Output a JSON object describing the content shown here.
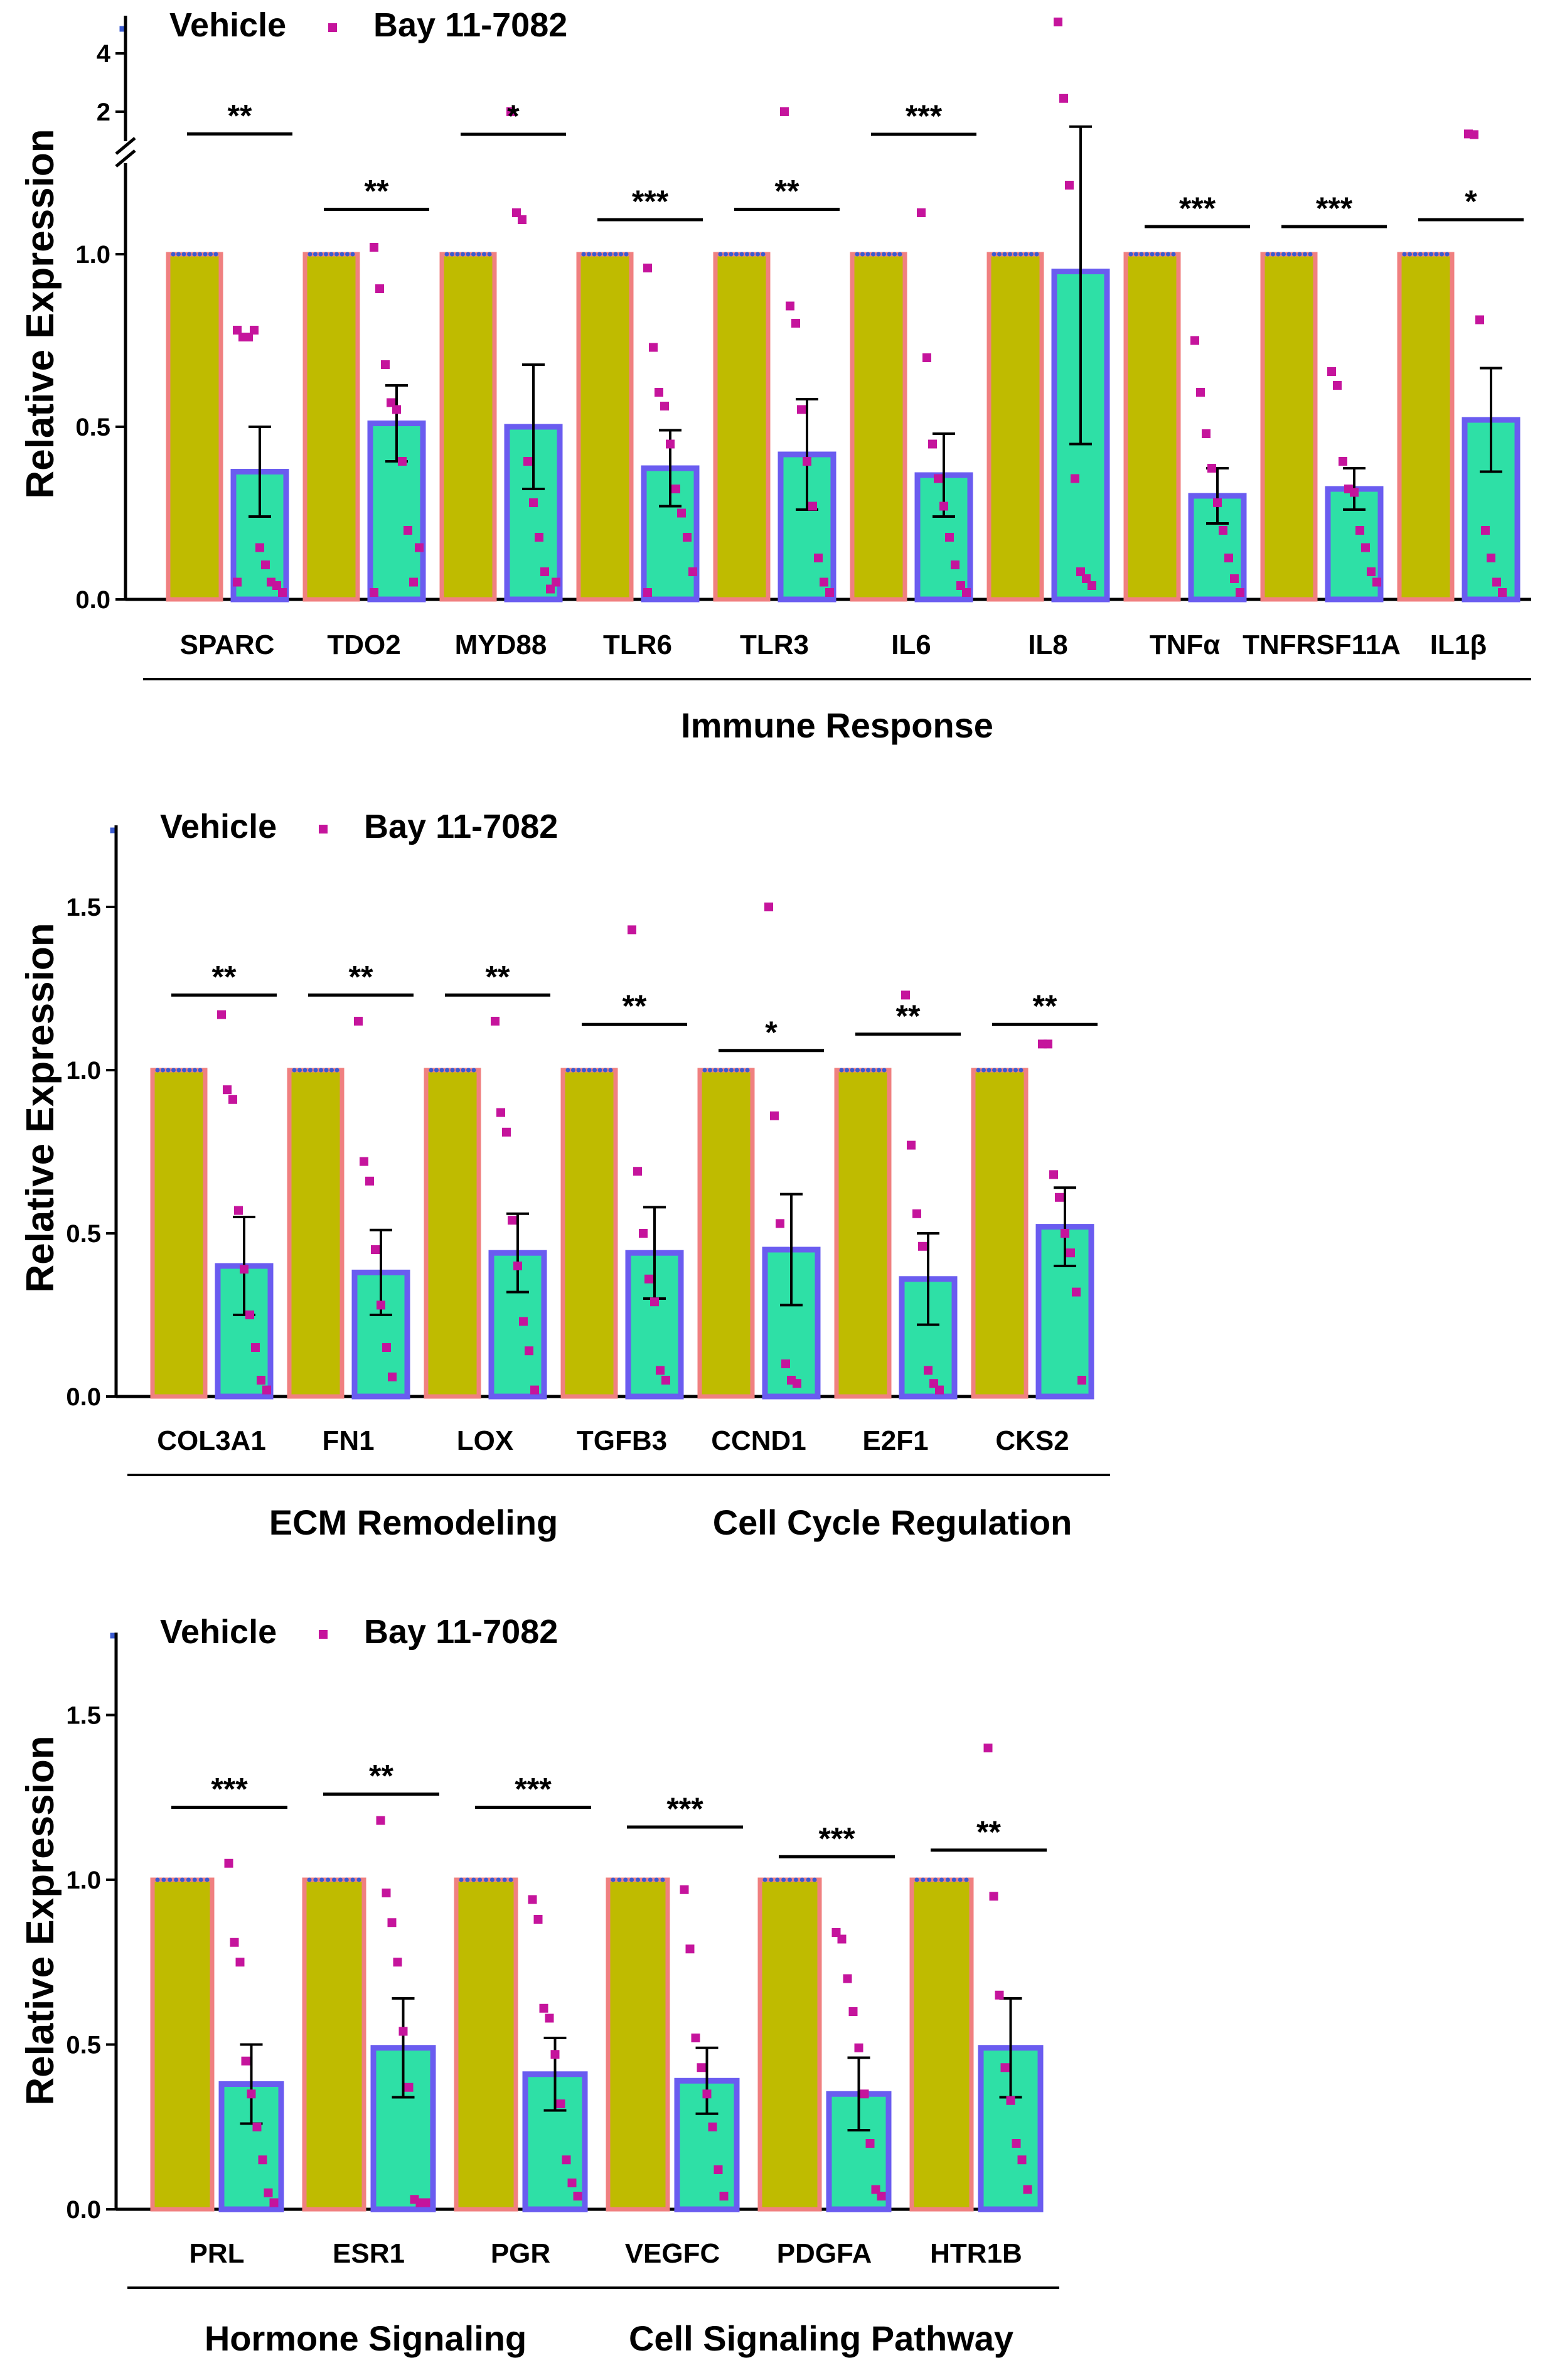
{
  "chart_data": [
    {
      "type": "bar",
      "panel": "top",
      "ylabel": "Relative Expression",
      "legend": [
        "Vehicle",
        "Bay 11-7082"
      ],
      "yticks": [
        "0.0",
        "0.5",
        "1.0"
      ],
      "yticks_broken": [
        "2",
        "4"
      ],
      "ylim": [
        0,
        1.2
      ],
      "broken_axis": [
        1.2,
        4.5
      ],
      "categories": [
        "SPARC",
        "TDO2",
        "MYD88",
        "TLR6",
        "TLR3",
        "IL6",
        "IL8",
        "TNFα",
        "TNFRSF11A",
        "IL1β"
      ],
      "series": [
        {
          "name": "Vehicle",
          "values": [
            1,
            1,
            1,
            1,
            1,
            1,
            1,
            1,
            1,
            1
          ]
        },
        {
          "name": "Bay 11-7082",
          "values": [
            0.37,
            0.51,
            0.5,
            0.38,
            0.42,
            0.36,
            0.95,
            0.3,
            0.32,
            0.52
          ],
          "sem": [
            0.13,
            0.11,
            0.18,
            0.11,
            0.16,
            0.12,
            0.5,
            0.08,
            0.06,
            0.15
          ]
        }
      ],
      "points": [
        [
          0.78,
          0.76,
          0.76,
          0.78,
          0.15,
          0.1,
          0.05,
          0.04,
          0.02,
          0.05
        ],
        [
          1.02,
          0.9,
          0.68,
          0.57,
          0.55,
          0.4,
          0.2,
          0.05,
          0.15,
          0.02
        ],
        [
          1.9,
          1.12,
          1.1,
          0.4,
          0.28,
          0.18,
          0.08,
          0.03,
          0.05
        ],
        [
          0.96,
          0.73,
          0.6,
          0.56,
          0.45,
          0.32,
          0.25,
          0.18,
          0.08,
          0.02
        ],
        [
          1.9,
          0.85,
          0.8,
          0.55,
          0.4,
          0.27,
          0.12,
          0.05,
          0.02
        ],
        [
          1.12,
          0.7,
          0.45,
          0.35,
          0.27,
          0.18,
          0.1,
          0.04,
          0.02
        ],
        [
          4.6,
          2.3,
          1.2,
          0.35,
          0.08,
          0.06,
          0.04
        ],
        [
          0.75,
          0.6,
          0.48,
          0.38,
          0.28,
          0.2,
          0.12,
          0.06,
          0.02
        ],
        [
          0.66,
          0.62,
          0.4,
          0.32,
          0.31,
          0.2,
          0.15,
          0.08,
          0.05
        ],
        [
          1.23,
          1.21,
          0.81,
          0.2,
          0.12,
          0.05,
          0.02
        ]
      ],
      "significance": [
        "**",
        "**",
        "*",
        "***",
        "**",
        "***",
        "",
        "***",
        "***",
        "*"
      ],
      "bracket_levels": [
        1.23,
        1.13,
        1.22,
        1.1,
        1.13,
        1.22,
        null,
        1.08,
        1.08,
        1.1
      ],
      "groups": [
        {
          "label": "Immune Response",
          "from": 0,
          "to": 9
        }
      ]
    },
    {
      "type": "bar",
      "panel": "middle",
      "ylabel": "Relative Expression",
      "legend": [
        "Vehicle",
        "Bay 11-7082"
      ],
      "yticks": [
        "0.0",
        "0.5",
        "1.0",
        "1.5"
      ],
      "ylim": [
        0,
        1.75
      ],
      "categories": [
        "COL3A1",
        "FN1",
        "LOX",
        "TGFB3",
        "CCND1",
        "E2F1",
        "CKS2"
      ],
      "series": [
        {
          "name": "Vehicle",
          "values": [
            1,
            1,
            1,
            1,
            1,
            1,
            1
          ]
        },
        {
          "name": "Bay 11-7082",
          "values": [
            0.4,
            0.38,
            0.44,
            0.44,
            0.45,
            0.36,
            0.52
          ],
          "sem": [
            0.15,
            0.13,
            0.12,
            0.14,
            0.17,
            0.14,
            0.12
          ]
        }
      ],
      "points": [
        [
          1.17,
          0.94,
          0.91,
          0.57,
          0.39,
          0.25,
          0.15,
          0.05,
          0.02
        ],
        [
          1.15,
          0.72,
          0.66,
          0.45,
          0.28,
          0.15,
          0.06
        ],
        [
          1.15,
          0.87,
          0.81,
          0.54,
          0.4,
          0.23,
          0.14,
          0.02
        ],
        [
          1.43,
          0.69,
          0.5,
          0.36,
          0.29,
          0.08,
          0.05
        ],
        [
          1.5,
          0.86,
          0.53,
          0.1,
          0.05,
          0.04
        ],
        [
          1.23,
          0.77,
          0.56,
          0.46,
          0.08,
          0.04,
          0.02
        ],
        [
          1.08,
          1.08,
          0.68,
          0.61,
          0.5,
          0.44,
          0.32,
          0.05
        ]
      ],
      "significance": [
        "**",
        "**",
        "**",
        "**",
        "*",
        "**",
        "**"
      ],
      "bracket_levels": [
        1.23,
        1.23,
        1.23,
        1.14,
        1.06,
        1.11,
        1.14
      ],
      "groups": [
        {
          "label": "ECM Remodeling",
          "from": 0,
          "to": 3
        },
        {
          "label": "Cell Cycle Regulation",
          "from": 4,
          "to": 6
        }
      ]
    },
    {
      "type": "bar",
      "panel": "bottom",
      "ylabel": "Relative Expression",
      "legend": [
        "Vehicle",
        "Bay 11-7082"
      ],
      "yticks": [
        "0.0",
        "0.5",
        "1.0",
        "1.5"
      ],
      "ylim": [
        0,
        1.75
      ],
      "categories": [
        "PRL",
        "ESR1",
        "PGR",
        "VEGFC",
        "PDGFA",
        "HTR1B"
      ],
      "series": [
        {
          "name": "Vehicle",
          "values": [
            1,
            1,
            1,
            1,
            1,
            1
          ]
        },
        {
          "name": "Bay 11-7082",
          "values": [
            0.38,
            0.49,
            0.41,
            0.39,
            0.35,
            0.49
          ],
          "sem": [
            0.12,
            0.15,
            0.11,
            0.1,
            0.11,
            0.15
          ]
        }
      ],
      "points": [
        [
          1.05,
          0.81,
          0.75,
          0.45,
          0.35,
          0.25,
          0.15,
          0.05,
          0.02
        ],
        [
          1.18,
          0.96,
          0.87,
          0.75,
          0.54,
          0.37,
          0.03,
          0.02,
          0.02
        ],
        [
          0.94,
          0.88,
          0.61,
          0.58,
          0.47,
          0.32,
          0.15,
          0.08,
          0.04
        ],
        [
          0.97,
          0.79,
          0.52,
          0.43,
          0.35,
          0.25,
          0.12,
          0.04
        ],
        [
          0.84,
          0.82,
          0.7,
          0.6,
          0.49,
          0.35,
          0.2,
          0.06,
          0.04
        ],
        [
          1.4,
          0.95,
          0.65,
          0.43,
          0.33,
          0.2,
          0.15,
          0.06
        ]
      ],
      "significance": [
        "***",
        "**",
        "***",
        "***",
        "***",
        "**"
      ],
      "bracket_levels": [
        1.22,
        1.26,
        1.22,
        1.16,
        1.07,
        1.09
      ],
      "groups": [
        {
          "label": "Hormone Signaling",
          "from": 0,
          "to": 2
        },
        {
          "label": "Cell Signaling Pathway",
          "from": 3,
          "to": 5
        }
      ]
    }
  ],
  "colors": {
    "vehicle_fill": "#bfbb00",
    "vehicle_edge": "#f08080",
    "treated_fill": "#2ee0a6",
    "treated_edge": "#6a5cf0",
    "point": "#c5149c",
    "vehicle_point": "#3b5bd0"
  }
}
